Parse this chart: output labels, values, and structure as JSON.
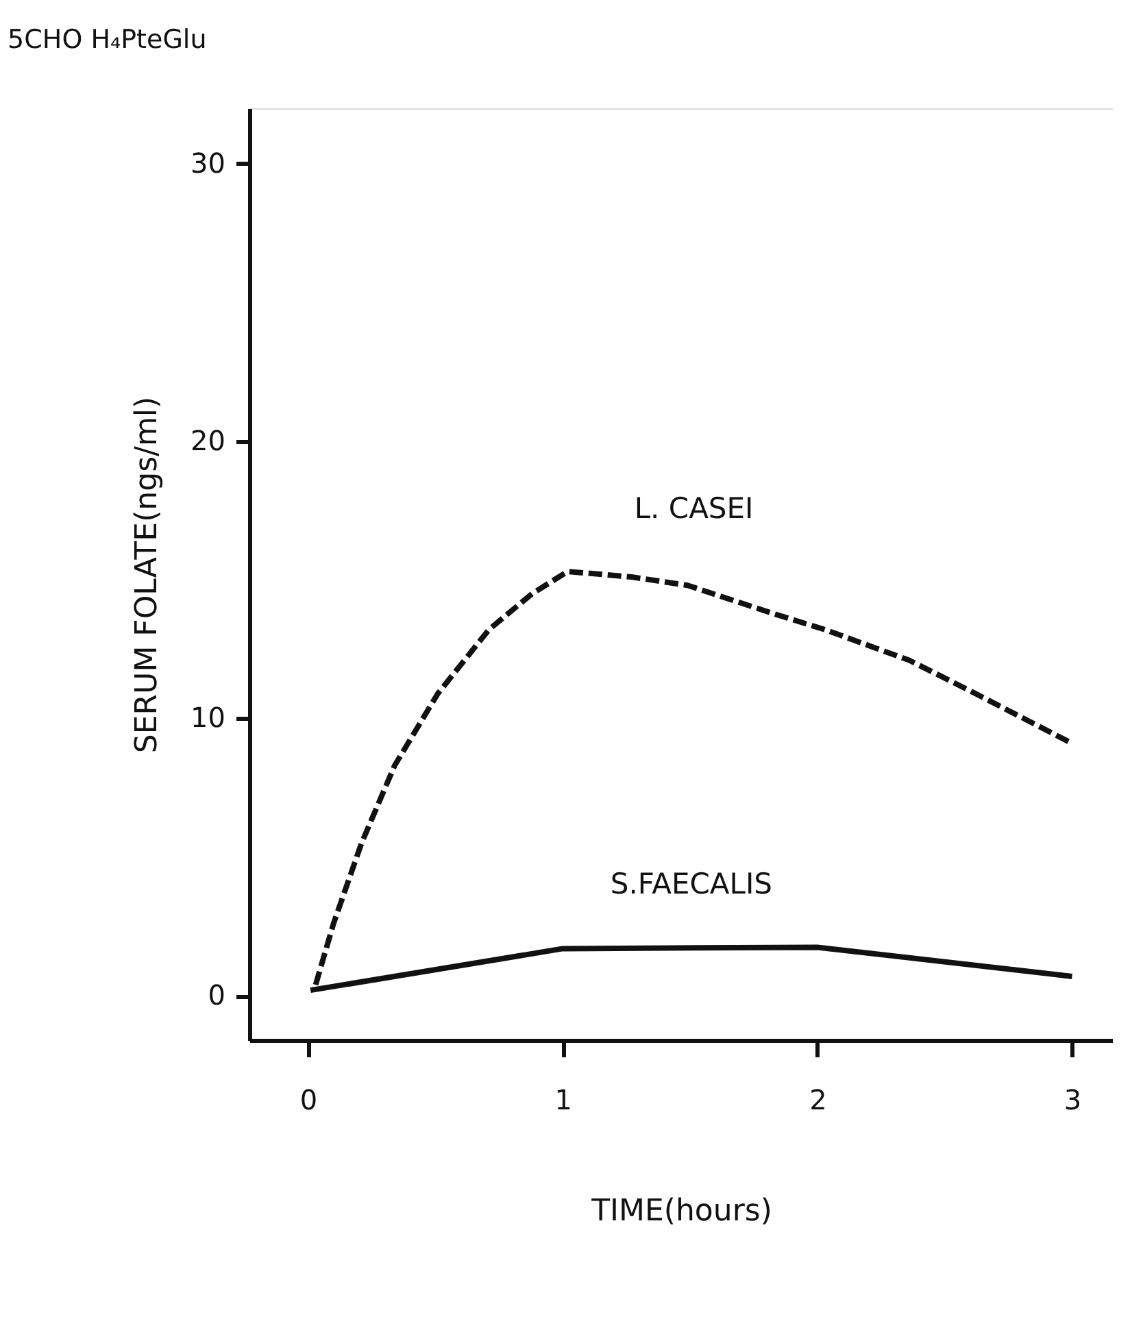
{
  "chart_data": {
    "type": "line",
    "title": "5CHO H₄PteGlu",
    "xlabel": "TIME(hours)",
    "ylabel": "SERUM FOLATE(ngs/ml)",
    "xlim": [
      -0.23,
      3.16
    ],
    "ylim": [
      -1.6,
      32
    ],
    "xticks": [
      0,
      1,
      2,
      3
    ],
    "yticks": [
      0,
      10,
      20,
      30
    ],
    "grid": false,
    "marker": "none",
    "series": [
      {
        "name": "L. CASEI",
        "color": "#111111",
        "line_style": "dashed",
        "x": [
          0.03,
          0.1,
          0.21,
          0.34,
          0.51,
          0.71,
          0.88,
          1.02,
          1.27,
          1.49,
          1.82,
          2.03,
          2.36,
          2.62,
          3.0
        ],
        "values": [
          0.4,
          2.6,
          5.5,
          8.3,
          10.9,
          13.2,
          14.5,
          15.3,
          15.1,
          14.8,
          13.8,
          13.2,
          12.1,
          10.9,
          9.1
        ]
      },
      {
        "name": "S.FAECALIS",
        "color": "#111111",
        "line_style": "solid",
        "x": [
          0.01,
          1.0,
          2.0,
          3.0
        ],
        "values": [
          0.2,
          1.7,
          1.75,
          0.7
        ]
      }
    ]
  }
}
